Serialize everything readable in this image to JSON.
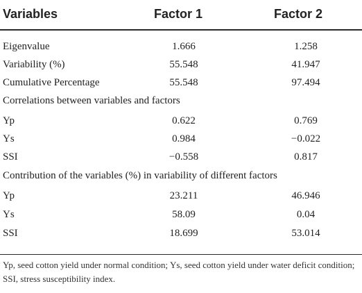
{
  "table": {
    "headers": {
      "variables": "Variables",
      "factor1": "Factor 1",
      "factor2": "Factor 2"
    },
    "summary_rows": [
      {
        "label": "Eigenvalue",
        "factor1": "1.666",
        "factor2": "1.258"
      },
      {
        "label": "Variability (%)",
        "factor1": "55.548",
        "factor2": "41.947"
      },
      {
        "label": "Cumulative Percentage",
        "factor1": "55.548",
        "factor2": "97.494"
      }
    ],
    "section_correlations": "Correlations between variables and factors",
    "correlation_rows": [
      {
        "label": "Yp",
        "factor1": "0.622",
        "factor2": "0.769"
      },
      {
        "label": "Ys",
        "factor1": "0.984",
        "factor2": "−0.022"
      },
      {
        "label": "SSI",
        "factor1": "−0.558",
        "factor2": "0.817"
      }
    ],
    "section_contribution": "Contribution of the variables (%) in variability of different factors",
    "contribution_rows": [
      {
        "label": "Yp",
        "factor1": "23.211",
        "factor2": "46.946"
      },
      {
        "label": "Ys",
        "factor1": "58.09",
        "factor2": "0.04"
      },
      {
        "label": "SSI",
        "factor1": "18.699",
        "factor2": "53.014"
      }
    ]
  },
  "footnote": "Yp, seed cotton yield under normal condition; Ys, seed cotton yield under water deficit condition; SSI, stress susceptibility index."
}
